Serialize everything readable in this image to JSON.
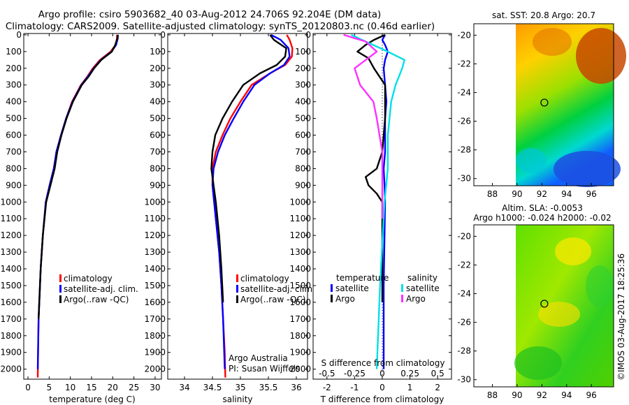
{
  "header": {
    "line1": "Argo profile: csiro 5903682_40 03-Aug-2012 24.706S 92.204E (DM data)",
    "line2": "Climatology: CARS2009. Satellite-adjusted climatology: synTS_20120803.nc (0.46d earlier)"
  },
  "depth_ticks": [
    "0",
    "100",
    "200",
    "300",
    "400",
    "500",
    "600",
    "700",
    "800",
    "900",
    "1000",
    "1100",
    "1200",
    "1300",
    "1400",
    "1500",
    "1600",
    "1700",
    "1800",
    "1900",
    "2000"
  ],
  "colors": {
    "climatology": "#ff0000",
    "satellite": "#0000ff",
    "argo": "#000000",
    "salinity_sat": "#00e0e8",
    "salinity_argo": "#ff30ff"
  },
  "chart_data": [
    {
      "type": "line",
      "title": "",
      "xlabel": "temperature (deg C)",
      "ylabel": "depth",
      "xlim": [
        -1,
        31.5
      ],
      "ylim": [
        2060,
        -8
      ],
      "x_ticks": [
        0,
        5,
        10,
        15,
        20,
        25,
        30
      ],
      "x_tick_labels": [
        "0",
        "5",
        "10",
        "15",
        "20",
        "25",
        "30"
      ],
      "legend": {
        "position": "bottom-right",
        "entries": [
          "climatology",
          "satellite-adj. clim.",
          "Argo(..raw -QC)"
        ]
      },
      "series": [
        {
          "name": "climatology",
          "color": "#ff0000",
          "x": [
            21,
            21,
            20.7,
            19.5,
            17,
            15.3,
            14,
            12.5,
            10.4,
            9,
            7.8,
            6.7,
            6.1,
            5.1,
            4.2,
            3.5,
            3.0,
            2.5,
            2.3
          ],
          "depth": [
            0,
            20,
            60,
            100,
            150,
            200,
            250,
            300,
            400,
            500,
            600,
            700,
            800,
            900,
            1000,
            1200,
            1400,
            1700,
            2050
          ]
        },
        {
          "name": "satellite-adj. clim.",
          "color": "#0000ff",
          "x": [
            21.2,
            21.2,
            20.8,
            19.7,
            17.2,
            15.5,
            14.1,
            12.6,
            10.5,
            9,
            7.8,
            6.7,
            6.1,
            5.1,
            4.2,
            3.5,
            3.0,
            2.5,
            2.3
          ],
          "depth": [
            0,
            20,
            60,
            100,
            150,
            200,
            250,
            300,
            400,
            500,
            600,
            700,
            800,
            900,
            1000,
            1200,
            1400,
            1700,
            2000
          ]
        },
        {
          "name": "Argo(..raw -QC)",
          "color": "#000000",
          "x": [
            21.2,
            21.1,
            20.6,
            19.8,
            17.3,
            15.6,
            14.3,
            12.7,
            10.6,
            9.1,
            7.9,
            6.9,
            6.3,
            5.3,
            4.3,
            3.5,
            3.0,
            2.5
          ],
          "depth": [
            0,
            20,
            60,
            100,
            150,
            200,
            250,
            300,
            400,
            500,
            600,
            700,
            800,
            900,
            1000,
            1200,
            1400,
            1700
          ]
        }
      ]
    },
    {
      "type": "line",
      "title": "",
      "xlabel": "salinity",
      "ylabel": "depth",
      "xlim": [
        33.7,
        36.2
      ],
      "ylim": [
        2060,
        -8
      ],
      "x_ticks": [
        34,
        34.5,
        35,
        35.5,
        36
      ],
      "x_tick_labels": [
        "34",
        "34.5",
        "35",
        "35.5",
        "36"
      ],
      "legend": {
        "position": "bottom-right",
        "entries": [
          "climatology",
          "satellite-adj. clim.",
          "Argo(..raw -QC)"
        ]
      },
      "annotation": [
        "Argo Australia",
        "PI: Susan Wijffels"
      ],
      "series": [
        {
          "name": "climatology",
          "color": "#ff0000",
          "x": [
            35.83,
            35.88,
            35.93,
            35.92,
            35.8,
            35.53,
            35.2,
            35.0,
            34.82,
            34.68,
            34.56,
            34.5,
            34.5,
            34.53,
            34.56,
            34.62,
            34.66,
            34.69,
            34.72,
            34.73
          ],
          "depth": [
            0,
            30,
            80,
            130,
            180,
            230,
            300,
            400,
            500,
            600,
            700,
            800,
            900,
            1000,
            1100,
            1300,
            1500,
            1700,
            1900,
            2050
          ]
        },
        {
          "name": "satellite-adj. clim.",
          "color": "#0000ff",
          "x": [
            35.55,
            35.72,
            35.86,
            35.88,
            35.78,
            35.53,
            35.25,
            35.05,
            34.88,
            34.72,
            34.6,
            34.52,
            34.5,
            34.53,
            34.56,
            34.62,
            34.66,
            34.69,
            34.72
          ],
          "depth": [
            0,
            30,
            80,
            130,
            180,
            230,
            300,
            400,
            500,
            600,
            700,
            800,
            900,
            1000,
            1100,
            1300,
            1500,
            1700,
            2000
          ]
        },
        {
          "name": "Argo(..raw -QC)",
          "color": "#000000",
          "x": [
            35.53,
            35.6,
            35.82,
            35.8,
            35.65,
            35.35,
            35.05,
            34.85,
            34.68,
            34.55,
            34.5,
            34.48,
            34.52,
            34.56,
            34.62,
            34.66,
            34.69
          ],
          "depth": [
            0,
            30,
            80,
            130,
            180,
            230,
            300,
            400,
            500,
            600,
            700,
            800,
            900,
            1000,
            1200,
            1400,
            1600
          ]
        }
      ]
    },
    {
      "type": "line",
      "title": "",
      "xlabel": "T difference from climatology",
      "xlabel_top": "S difference from climatology",
      "ylabel": "depth",
      "xlim": [
        -2.5,
        2.5
      ],
      "ylim": [
        2060,
        -8
      ],
      "x_ticks": [
        -2,
        -1,
        0,
        1,
        2
      ],
      "x_tick_labels": [
        "-2",
        "-1",
        "0",
        "1",
        "2"
      ],
      "s_ticks": [
        -0.5,
        -0.25,
        0,
        0.25,
        0.5
      ],
      "s_tick_labels": [
        "-0.5",
        "-0.25",
        "0",
        "0.25",
        "0.5"
      ],
      "legend": {
        "position": "bottom",
        "titles": [
          "temperature",
          "salinity"
        ],
        "entries": [
          "satellite",
          "Argo",
          "satellite",
          "Argo"
        ]
      },
      "series": [
        {
          "name": "temperature satellite",
          "color": "#0000ff",
          "x": [
            0.1,
            0.0,
            0.1,
            0.2,
            0.1,
            0.05,
            0.1,
            0.15,
            0.1,
            0.1,
            0.1,
            0.05,
            0.08,
            0.1,
            0.05,
            0.05
          ],
          "depth": [
            0,
            30,
            60,
            100,
            150,
            200,
            300,
            400,
            500,
            600,
            700,
            800,
            900,
            1000,
            1500,
            2000
          ]
        },
        {
          "name": "temperature Argo",
          "color": "#000000",
          "x": [
            0.1,
            -0.3,
            -0.6,
            -0.9,
            -0.5,
            -0.3,
            0.1,
            0.1,
            0.0,
            -0.2,
            -0.6,
            -0.5,
            -0.2,
            0.0,
            0.0
          ],
          "depth": [
            0,
            30,
            60,
            100,
            140,
            200,
            300,
            500,
            700,
            800,
            850,
            900,
            950,
            1000,
            1600
          ]
        },
        {
          "name": "salinity satellite",
          "color": "#00e0e8",
          "x": [
            -0.28,
            -0.15,
            0.05,
            0.2,
            0.18,
            0.12,
            0.08,
            0.05,
            0.05,
            0.02,
            -0.02,
            -0.05
          ],
          "depth": [
            0,
            40,
            100,
            150,
            200,
            300,
            400,
            600,
            800,
            1000,
            1500,
            2000
          ]
        },
        {
          "name": "salinity Argo",
          "color": "#ff30ff",
          "x": [
            -0.35,
            -0.15,
            -0.05,
            -0.25,
            -0.2,
            -0.08,
            -0.05,
            0.0,
            0.0
          ],
          "depth": [
            0,
            40,
            100,
            200,
            300,
            400,
            500,
            700,
            1100
          ]
        }
      ]
    },
    {
      "type": "heatmap",
      "title": "sat. SST: 20.8 Argo: 20.7",
      "x_tick_labels": [
        "88",
        "90",
        "92",
        "94",
        "96"
      ],
      "y_tick_labels": [
        "-20",
        "-22",
        "-24",
        "-26",
        "-28",
        "-30"
      ],
      "x_ticks": [
        88,
        90,
        92,
        94,
        96
      ],
      "y_ticks": [
        -20,
        -22,
        -24,
        -26,
        -28,
        -30
      ],
      "xlim": [
        86.5,
        97.8
      ],
      "ylim": [
        -30.5,
        -19.2
      ],
      "marker": {
        "lon": 92.2,
        "lat": -24.7
      }
    },
    {
      "type": "heatmap",
      "title_line1": "Altim. SLA: -0.0053",
      "title_line2": "Argo h1000: -0.024 h2000: -0.02",
      "x_tick_labels": [
        "88",
        "90",
        "92",
        "94",
        "96"
      ],
      "y_tick_labels": [
        "-20",
        "-22",
        "-24",
        "-26",
        "-28",
        "-30"
      ],
      "x_ticks": [
        88,
        90,
        92,
        94,
        96
      ],
      "y_ticks": [
        -20,
        -22,
        -24,
        -26,
        -28,
        -30
      ],
      "xlim": [
        86.5,
        97.8
      ],
      "ylim": [
        -30.5,
        -19.2
      ],
      "marker": {
        "lon": 92.2,
        "lat": -24.7
      }
    }
  ],
  "credit": "©IMOS 03-Aug-2017 18:25:36"
}
